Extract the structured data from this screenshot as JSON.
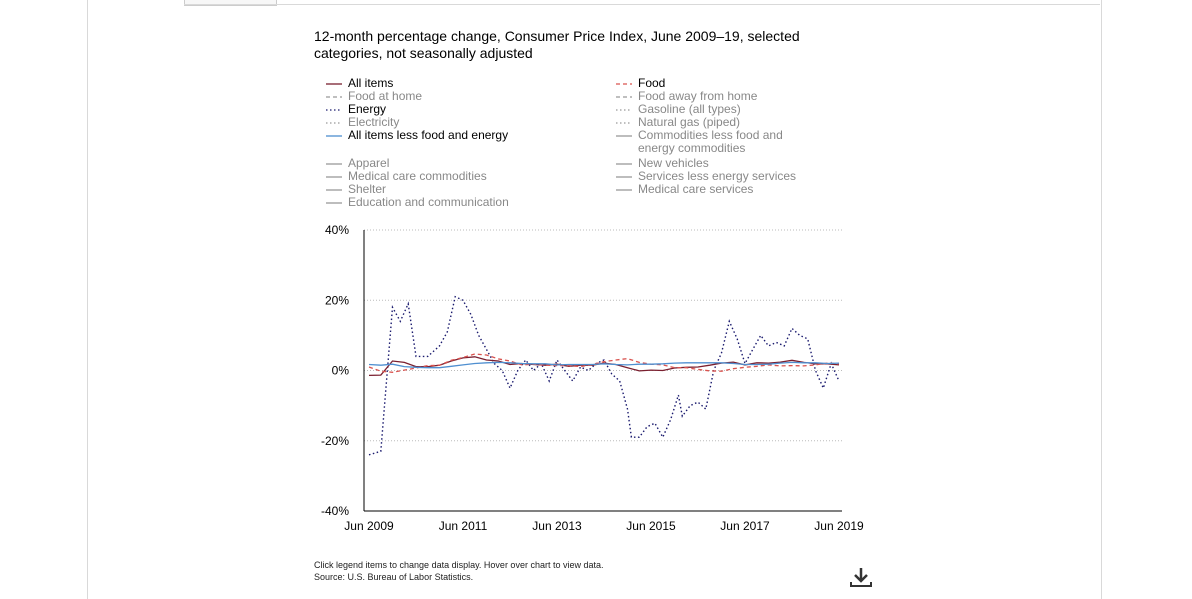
{
  "header": {
    "title": "12-month percentage change, Consumer Price Index, June 2009–19, selected categories, not seasonally adjusted"
  },
  "legend": [
    {
      "label": "All items",
      "active": true,
      "color": "#7a1f2f",
      "dash": "solid"
    },
    {
      "label": "Food",
      "active": true,
      "color": "#d9534f",
      "dash": "dashed"
    },
    {
      "label": "Food at home",
      "active": false,
      "color": "#999999",
      "dash": "dashed"
    },
    {
      "label": "Food away from home",
      "active": false,
      "color": "#999999",
      "dash": "dashed"
    },
    {
      "label": "Energy",
      "active": true,
      "color": "#1a1a6e",
      "dash": "dotted"
    },
    {
      "label": "Gasoline (all types)",
      "active": false,
      "color": "#999999",
      "dash": "dotted"
    },
    {
      "label": "Electricity",
      "active": false,
      "color": "#999999",
      "dash": "dotted"
    },
    {
      "label": "Natural gas (piped)",
      "active": false,
      "color": "#999999",
      "dash": "dotted"
    },
    {
      "label": "All items less food and energy",
      "active": true,
      "color": "#4f8fd0",
      "dash": "solid"
    },
    {
      "label": "Commodities less food and energy commodities",
      "active": false,
      "color": "#999999",
      "dash": "solid"
    },
    {
      "label": "Apparel",
      "active": false,
      "color": "#999999",
      "dash": "solid"
    },
    {
      "label": "New vehicles",
      "active": false,
      "color": "#999999",
      "dash": "solid"
    },
    {
      "label": "Medical care commodities",
      "active": false,
      "color": "#999999",
      "dash": "solid"
    },
    {
      "label": "Services less energy services",
      "active": false,
      "color": "#999999",
      "dash": "solid"
    },
    {
      "label": "Shelter",
      "active": false,
      "color": "#999999",
      "dash": "solid"
    },
    {
      "label": "Medical care services",
      "active": false,
      "color": "#999999",
      "dash": "solid"
    },
    {
      "label": "Education and communication",
      "active": false,
      "color": "#999999",
      "dash": "solid"
    }
  ],
  "chart_data": {
    "type": "line",
    "title": "12-month percentage change, Consumer Price Index, June 2009–19, selected categories, not seasonally adjusted",
    "xlabel": "",
    "ylabel": "",
    "ylim": [
      -40,
      40
    ],
    "yticks": [
      "40%",
      "20%",
      "0%",
      "-20%",
      "-40%"
    ],
    "xticks": [
      "Jun 2009",
      "Jun 2011",
      "Jun 2013",
      "Jun 2015",
      "Jun 2017",
      "Jun 2019"
    ],
    "grid": "horizontal dotted",
    "series": [
      {
        "name": "Energy",
        "color": "#1a1a6e",
        "dash": "dotted",
        "points": [
          [
            "Jun 2009",
            -24
          ],
          [
            "Sep 2009",
            -23
          ],
          [
            "Dec 2009",
            18
          ],
          [
            "Feb 2010",
            14
          ],
          [
            "Apr 2010",
            19
          ],
          [
            "Jun 2010",
            4
          ],
          [
            "Sep 2010",
            4
          ],
          [
            "Dec 2010",
            7
          ],
          [
            "Feb 2011",
            11
          ],
          [
            "Apr 2011",
            21
          ],
          [
            "Jun 2011",
            20
          ],
          [
            "Aug 2011",
            16
          ],
          [
            "Oct 2011",
            10
          ],
          [
            "Dec 2011",
            6
          ],
          [
            "Feb 2012",
            2
          ],
          [
            "Apr 2012",
            0
          ],
          [
            "Jun 2012",
            -5
          ],
          [
            "Aug 2012",
            0
          ],
          [
            "Oct 2012",
            3
          ],
          [
            "Dec 2012",
            0
          ],
          [
            "Feb 2013",
            2
          ],
          [
            "Apr 2013",
            -3
          ],
          [
            "Jun 2013",
            3
          ],
          [
            "Aug 2013",
            0
          ],
          [
            "Oct 2013",
            -3
          ],
          [
            "Dec 2013",
            1
          ],
          [
            "Feb 2014",
            0
          ],
          [
            "Apr 2014",
            2
          ],
          [
            "Jun 2014",
            3
          ],
          [
            "Aug 2014",
            -1
          ],
          [
            "Oct 2014",
            -3
          ],
          [
            "Dec 2014",
            -11
          ],
          [
            "Jan 2015",
            -19
          ],
          [
            "Mar 2015",
            -19
          ],
          [
            "May 2015",
            -16
          ],
          [
            "Jul 2015",
            -15
          ],
          [
            "Sep 2015",
            -19
          ],
          [
            "Nov 2015",
            -14
          ],
          [
            "Jan 2016",
            -7
          ],
          [
            "Feb 2016",
            -13
          ],
          [
            "Apr 2016",
            -10
          ],
          [
            "Jun 2016",
            -9
          ],
          [
            "Aug 2016",
            -11
          ],
          [
            "Oct 2016",
            0
          ],
          [
            "Dec 2016",
            5
          ],
          [
            "Feb 2017",
            14
          ],
          [
            "Apr 2017",
            9
          ],
          [
            "Jun 2017",
            2
          ],
          [
            "Aug 2017",
            6
          ],
          [
            "Oct 2017",
            10
          ],
          [
            "Dec 2017",
            7
          ],
          [
            "Feb 2018",
            8
          ],
          [
            "Apr 2018",
            7
          ],
          [
            "Jun 2018",
            12
          ],
          [
            "Aug 2018",
            10
          ],
          [
            "Oct 2018",
            9
          ],
          [
            "Dec 2018",
            0
          ],
          [
            "Feb 2019",
            -5
          ],
          [
            "Apr 2019",
            2
          ],
          [
            "Jun 2019",
            -3
          ]
        ]
      },
      {
        "name": "All items",
        "color": "#7a1f2f",
        "dash": "solid",
        "points": [
          [
            "Jun 2009",
            -1.4
          ],
          [
            "Sep 2009",
            -1.3
          ],
          [
            "Dec 2009",
            2.7
          ],
          [
            "Mar 2010",
            2.3
          ],
          [
            "Jun 2010",
            1.1
          ],
          [
            "Sep 2010",
            1.1
          ],
          [
            "Dec 2010",
            1.5
          ],
          [
            "Mar 2011",
            2.7
          ],
          [
            "Jun 2011",
            3.6
          ],
          [
            "Sep 2011",
            3.9
          ],
          [
            "Dec 2011",
            3.0
          ],
          [
            "Mar 2012",
            2.7
          ],
          [
            "Jun 2012",
            1.7
          ],
          [
            "Sep 2012",
            2.0
          ],
          [
            "Dec 2012",
            1.7
          ],
          [
            "Mar 2013",
            1.5
          ],
          [
            "Jun 2013",
            1.8
          ],
          [
            "Sep 2013",
            1.2
          ],
          [
            "Dec 2013",
            1.5
          ],
          [
            "Mar 2014",
            1.5
          ],
          [
            "Jun 2014",
            2.1
          ],
          [
            "Sep 2014",
            1.7
          ],
          [
            "Dec 2014",
            0.8
          ],
          [
            "Mar 2015",
            -0.1
          ],
          [
            "Jun 2015",
            0.1
          ],
          [
            "Sep 2015",
            0
          ],
          [
            "Dec 2015",
            0.7
          ],
          [
            "Mar 2016",
            0.9
          ],
          [
            "Jun 2016",
            1.0
          ],
          [
            "Sep 2016",
            1.5
          ],
          [
            "Dec 2016",
            2.1
          ],
          [
            "Mar 2017",
            2.4
          ],
          [
            "Jun 2017",
            1.6
          ],
          [
            "Sep 2017",
            2.2
          ],
          [
            "Dec 2017",
            2.1
          ],
          [
            "Mar 2018",
            2.4
          ],
          [
            "Jun 2018",
            2.9
          ],
          [
            "Sep 2018",
            2.3
          ],
          [
            "Dec 2018",
            1.9
          ],
          [
            "Mar 2019",
            1.9
          ],
          [
            "Jun 2019",
            1.6
          ]
        ]
      },
      {
        "name": "Food",
        "color": "#d9534f",
        "dash": "dashed",
        "points": [
          [
            "Jun 2009",
            1.0
          ],
          [
            "Sep 2009",
            -0.2
          ],
          [
            "Dec 2009",
            -0.5
          ],
          [
            "Mar 2010",
            0.1
          ],
          [
            "Jun 2010",
            0.7
          ],
          [
            "Sep 2010",
            1.4
          ],
          [
            "Dec 2010",
            1.5
          ],
          [
            "Mar 2011",
            2.9
          ],
          [
            "Jun 2011",
            3.7
          ],
          [
            "Sep 2011",
            4.7
          ],
          [
            "Dec 2011",
            4.4
          ],
          [
            "Mar 2012",
            3.3
          ],
          [
            "Jun 2012",
            2.7
          ],
          [
            "Sep 2012",
            1.6
          ],
          [
            "Dec 2012",
            1.8
          ],
          [
            "Mar 2013",
            1.5
          ],
          [
            "Jun 2013",
            1.4
          ],
          [
            "Sep 2013",
            1.4
          ],
          [
            "Dec 2013",
            1.1
          ],
          [
            "Mar 2014",
            1.7
          ],
          [
            "Jun 2014",
            2.5
          ],
          [
            "Sep 2014",
            3.0
          ],
          [
            "Dec 2014",
            3.4
          ],
          [
            "Mar 2015",
            2.3
          ],
          [
            "Jun 2015",
            1.8
          ],
          [
            "Sep 2015",
            1.6
          ],
          [
            "Dec 2015",
            0.8
          ],
          [
            "Mar 2016",
            0.8
          ],
          [
            "Jun 2016",
            0.3
          ],
          [
            "Sep 2016",
            -0.1
          ],
          [
            "Dec 2016",
            -0.2
          ],
          [
            "Mar 2017",
            0.5
          ],
          [
            "Jun 2017",
            0.9
          ],
          [
            "Sep 2017",
            1.2
          ],
          [
            "Dec 2017",
            1.6
          ],
          [
            "Mar 2018",
            1.3
          ],
          [
            "Jun 2018",
            1.4
          ],
          [
            "Sep 2018",
            1.3
          ],
          [
            "Dec 2018",
            1.6
          ],
          [
            "Mar 2019",
            2.1
          ],
          [
            "Jun 2019",
            1.9
          ]
        ]
      },
      {
        "name": "All items less food and energy",
        "color": "#4f8fd0",
        "dash": "solid",
        "points": [
          [
            "Jun 2009",
            1.7
          ],
          [
            "Sep 2009",
            1.5
          ],
          [
            "Dec 2009",
            1.8
          ],
          [
            "Mar 2010",
            1.1
          ],
          [
            "Jun 2010",
            0.9
          ],
          [
            "Sep 2010",
            0.8
          ],
          [
            "Dec 2010",
            0.8
          ],
          [
            "Mar 2011",
            1.2
          ],
          [
            "Jun 2011",
            1.6
          ],
          [
            "Sep 2011",
            2.0
          ],
          [
            "Dec 2011",
            2.2
          ],
          [
            "Mar 2012",
            2.3
          ],
          [
            "Jun 2012",
            2.2
          ],
          [
            "Sep 2012",
            2.0
          ],
          [
            "Dec 2012",
            1.9
          ],
          [
            "Mar 2013",
            1.9
          ],
          [
            "Jun 2013",
            1.6
          ],
          [
            "Sep 2013",
            1.7
          ],
          [
            "Dec 2013",
            1.7
          ],
          [
            "Mar 2014",
            1.7
          ],
          [
            "Jun 2014",
            1.9
          ],
          [
            "Sep 2014",
            1.7
          ],
          [
            "Dec 2014",
            1.6
          ],
          [
            "Mar 2015",
            1.8
          ],
          [
            "Jun 2015",
            1.8
          ],
          [
            "Sep 2015",
            1.9
          ],
          [
            "Dec 2015",
            2.1
          ],
          [
            "Mar 2016",
            2.2
          ],
          [
            "Jun 2016",
            2.2
          ],
          [
            "Sep 2016",
            2.2
          ],
          [
            "Dec 2016",
            2.2
          ],
          [
            "Mar 2017",
            2.0
          ],
          [
            "Jun 2017",
            1.7
          ],
          [
            "Sep 2017",
            1.7
          ],
          [
            "Dec 2017",
            1.8
          ],
          [
            "Mar 2018",
            2.1
          ],
          [
            "Jun 2018",
            2.3
          ],
          [
            "Sep 2018",
            2.2
          ],
          [
            "Dec 2018",
            2.2
          ],
          [
            "Mar 2019",
            2.0
          ],
          [
            "Jun 2019",
            2.1
          ]
        ]
      }
    ]
  },
  "footer": {
    "note1": "Click legend items to change data display. Hover over chart to view data.",
    "note2": "Source: U.S. Bureau of Labor Statistics."
  }
}
